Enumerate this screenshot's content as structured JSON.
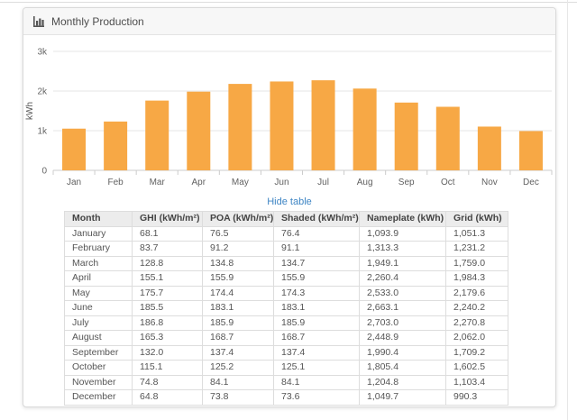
{
  "header": {
    "title": "Monthly Production"
  },
  "colors": {
    "bar": "#F7A845",
    "link": "#3e85c4",
    "gridline": "#e6e6e6",
    "axis_line": "#cccccc",
    "axis_text": "#666666"
  },
  "chart_data": {
    "type": "bar",
    "title": "Monthly Production",
    "categories": [
      "Jan",
      "Feb",
      "Mar",
      "Apr",
      "May",
      "Jun",
      "Jul",
      "Aug",
      "Sep",
      "Oct",
      "Nov",
      "Dec"
    ],
    "values": [
      1051.3,
      1231.2,
      1759.0,
      1984.3,
      2179.6,
      2240.2,
      2270.8,
      2062.0,
      1709.2,
      1602.5,
      1103.4,
      990.3
    ],
    "series_name": "Grid (kWh)",
    "xlabel": "",
    "ylabel": "kWh",
    "ylim": [
      0,
      3000
    ],
    "y_tick_values": [
      0,
      1000,
      2000,
      3000
    ],
    "y_tick_labels": [
      "0",
      "1k",
      "2k",
      "3k"
    ],
    "grid": true,
    "legend": "none",
    "bar_color": "#F7A845"
  },
  "table_toggle": {
    "label": "Hide table"
  },
  "table": {
    "columns": [
      "Month",
      "GHI (kWh/m²)",
      "POA (kWh/m²)",
      "Shaded (kWh/m²)",
      "Nameplate (kWh)",
      "Grid (kWh)"
    ],
    "rows": [
      [
        "January",
        "68.1",
        "76.5",
        "76.4",
        "1,093.9",
        "1,051.3"
      ],
      [
        "February",
        "83.7",
        "91.2",
        "91.1",
        "1,313.3",
        "1,231.2"
      ],
      [
        "March",
        "128.8",
        "134.8",
        "134.7",
        "1,949.1",
        "1,759.0"
      ],
      [
        "April",
        "155.1",
        "155.9",
        "155.9",
        "2,260.4",
        "1,984.3"
      ],
      [
        "May",
        "175.7",
        "174.4",
        "174.3",
        "2,533.0",
        "2,179.6"
      ],
      [
        "June",
        "185.5",
        "183.1",
        "183.1",
        "2,663.1",
        "2,240.2"
      ],
      [
        "July",
        "186.8",
        "185.9",
        "185.9",
        "2,703.0",
        "2,270.8"
      ],
      [
        "August",
        "165.3",
        "168.7",
        "168.7",
        "2,448.9",
        "2,062.0"
      ],
      [
        "September",
        "132.0",
        "137.4",
        "137.4",
        "1,990.4",
        "1,709.2"
      ],
      [
        "October",
        "115.1",
        "125.2",
        "125.1",
        "1,805.4",
        "1,602.5"
      ],
      [
        "November",
        "74.8",
        "84.1",
        "84.1",
        "1,204.8",
        "1,103.4"
      ],
      [
        "December",
        "64.8",
        "73.8",
        "73.6",
        "1,049.7",
        "990.3"
      ]
    ]
  }
}
